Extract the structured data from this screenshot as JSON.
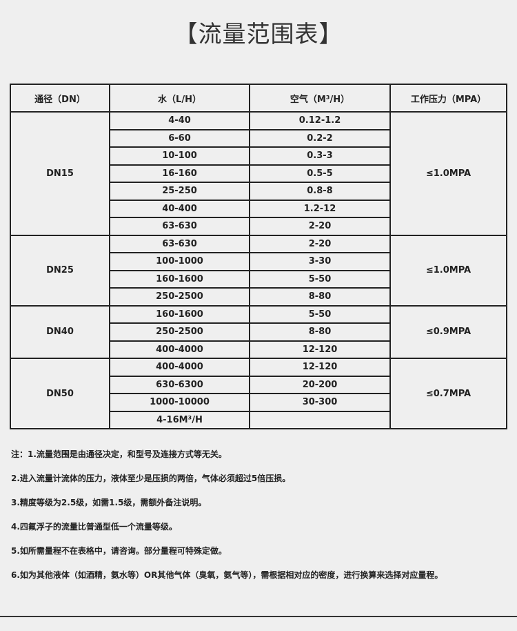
{
  "title": "【流量范围表】",
  "headers": [
    "通径（DN）",
    "水（L/H）",
    "空气（M³/H）",
    "工作压力（MPA）"
  ],
  "groups": [
    {
      "dn": "DN15",
      "pressure": "≤1.0MPA",
      "rows": [
        [
          "4-40",
          "0.12-1.2"
        ],
        [
          "6-60",
          "0.2-2"
        ],
        [
          "10-100",
          "0.3-3"
        ],
        [
          "16-160",
          "0.5-5"
        ],
        [
          "25-250",
          "0.8-8"
        ],
        [
          "40-400",
          "1.2-12"
        ],
        [
          "63-630",
          "2-20"
        ]
      ]
    },
    {
      "dn": "DN25",
      "pressure": "≤1.0MPA",
      "rows": [
        [
          "63-630",
          "2-20"
        ],
        [
          "100-1000",
          "3-30"
        ],
        [
          "160-1600",
          "5-50"
        ],
        [
          "250-2500",
          "8-80"
        ]
      ]
    },
    {
      "dn": "DN40",
      "pressure": "≤0.9MPA",
      "rows": [
        [
          "160-1600",
          "5-50"
        ],
        [
          "250-2500",
          "8-80"
        ],
        [
          "400-4000",
          "12-120"
        ]
      ]
    },
    {
      "dn": "DN50",
      "pressure": "≤0.7MPA",
      "rows": [
        [
          "400-4000",
          "12-120"
        ],
        [
          "630-6300",
          "20-200"
        ],
        [
          "1000-10000",
          "30-300"
        ],
        [
          "4-16M³/H",
          ""
        ]
      ]
    }
  ],
  "notes": [
    "注：1.流量范围是由通径决定，和型号及连接方式等无关。",
    "2.进入流量计流体的压力，液体至少是压损的两倍，气体必须超过5倍压损。",
    "3.精度等级为2.5级，如需1.5级，需额外备注说明。",
    "4.四氟浮子的流量比普通型低一个流量等级。",
    "5.如所需量程不在表格中，请咨询。部分量程可特殊定做。",
    "6.如为其他液体（如酒精，氨水等）OR其他气体（臭氧，氨气等），需根据相对应的密度，进行换算来选择对应量程。"
  ]
}
